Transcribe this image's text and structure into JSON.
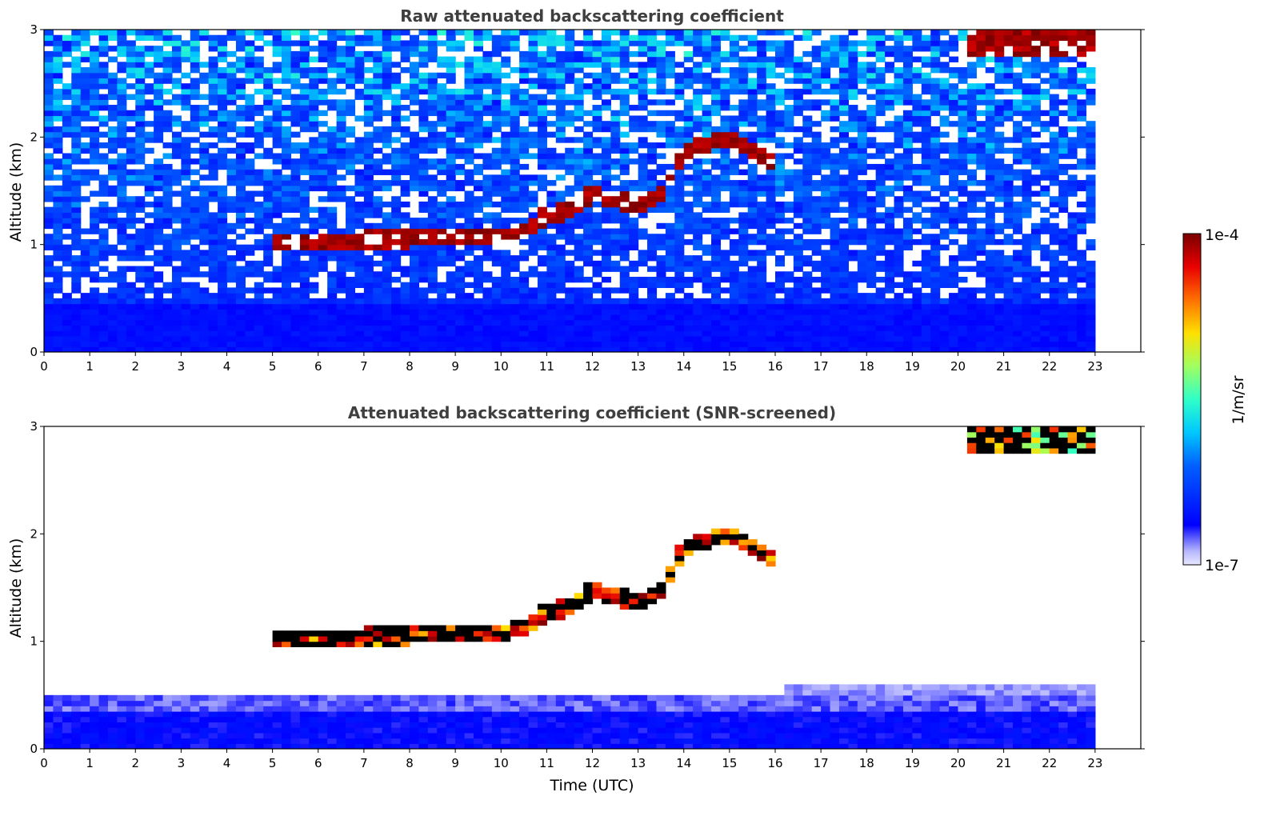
{
  "chart_data": [
    {
      "type": "heatmap",
      "title": "Raw attenuated backscattering coefficient",
      "xlabel": "",
      "ylabel": "Altitude (km)",
      "xlim": [
        0,
        24
      ],
      "ylim": [
        0,
        3
      ],
      "xticks": [
        "0",
        "1",
        "2",
        "3",
        "4",
        "5",
        "6",
        "7",
        "8",
        "9",
        "10",
        "11",
        "12",
        "13",
        "14",
        "15",
        "16",
        "17",
        "18",
        "19",
        "20",
        "21",
        "22",
        "23"
      ],
      "yticks": [
        "0",
        "1",
        "2",
        "3"
      ],
      "data_end_time": 23,
      "layers": [
        {
          "desc": "boundary layer",
          "t_start": 0,
          "t_end": 23,
          "alt_top_km": 0.45
        },
        {
          "desc": "cloud",
          "points": [
            [
              5.1,
              1.0
            ],
            [
              10.0,
              1.05
            ],
            [
              10.5,
              1.1
            ],
            [
              11.0,
              1.25
            ],
            [
              11.5,
              1.3
            ],
            [
              12.0,
              1.45
            ],
            [
              12.5,
              1.4
            ],
            [
              13.0,
              1.35
            ],
            [
              13.5,
              1.45
            ],
            [
              14.0,
              1.85
            ],
            [
              14.5,
              1.92
            ],
            [
              15.0,
              1.95
            ],
            [
              15.5,
              1.85
            ],
            [
              15.9,
              1.75
            ]
          ]
        },
        {
          "desc": "high cloud",
          "t_start": 20.2,
          "t_end": 23.0,
          "alt_base_km": 2.75,
          "alt_top_km": 3.0
        }
      ]
    },
    {
      "type": "heatmap",
      "title": "Attenuated backscattering coefficient (SNR-screened)",
      "xlabel": "Time (UTC)",
      "ylabel": "Altitude (km)",
      "xlim": [
        0,
        24
      ],
      "ylim": [
        0,
        3
      ],
      "xticks": [
        "0",
        "1",
        "2",
        "3",
        "4",
        "5",
        "6",
        "7",
        "8",
        "9",
        "10",
        "11",
        "12",
        "13",
        "14",
        "15",
        "16",
        "17",
        "18",
        "19",
        "20",
        "21",
        "22",
        "23"
      ],
      "yticks": [
        "0",
        "1",
        "2",
        "3"
      ],
      "data_end_time": 23
    }
  ],
  "colorbar": {
    "max_label": "1e-4",
    "min_label": "1e-7",
    "unit_label": "1/m/sr",
    "scale": "log",
    "range": [
      1e-07,
      0.0001
    ],
    "colormap": "jet"
  }
}
